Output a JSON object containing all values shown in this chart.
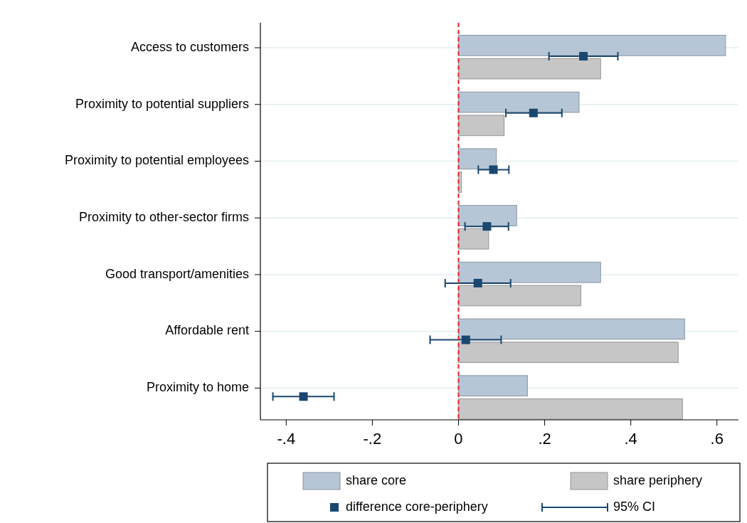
{
  "chart_data": {
    "type": "bar",
    "orientation": "horizontal",
    "categories": [
      "Access to customers",
      "Proximity to potential suppliers",
      "Proximity to potential employees",
      "Proximity to other-sector firms",
      "Good transport/amenities",
      "Affordable rent",
      "Proximity to home"
    ],
    "series": [
      {
        "name": "share core",
        "color": "#b6c6d6",
        "values": [
          0.62,
          0.28,
          0.088,
          0.135,
          0.33,
          0.525,
          0.16
        ]
      },
      {
        "name": "share periphery",
        "color": "#c6c6c6",
        "values": [
          0.33,
          0.106,
          0.007,
          0.07,
          0.284,
          0.51,
          0.52
        ]
      },
      {
        "name": "difference core-periphery",
        "type": "scatter",
        "color": "#1a476f",
        "marker": "square",
        "values": [
          0.29,
          0.174,
          0.081,
          0.066,
          0.045,
          0.017,
          -0.36
        ],
        "errors": [
          [
            0.21,
            0.37
          ],
          [
            0.11,
            0.24
          ],
          [
            0.046,
            0.117
          ],
          [
            0.015,
            0.116
          ],
          [
            -0.031,
            0.121
          ],
          [
            -0.066,
            0.099
          ],
          [
            -0.431,
            -0.289
          ]
        ]
      }
    ],
    "annotations": [
      "95% CI"
    ],
    "xlim": [
      -0.46,
      0.65
    ],
    "xticks": [
      {
        "value": -0.4,
        "label": "-.4"
      },
      {
        "value": -0.2,
        "label": "-.2"
      },
      0,
      {
        "value": 0.2,
        "label": ".2"
      },
      {
        "value": 0.4,
        "label": ".4"
      },
      {
        "value": 0.6,
        "label": ".6"
      }
    ],
    "ref_lines": [
      {
        "axis": "x",
        "value": 0,
        "color": "#e8202a",
        "line_style": "dashed"
      }
    ],
    "grid": "y",
    "legend": "bottom"
  }
}
